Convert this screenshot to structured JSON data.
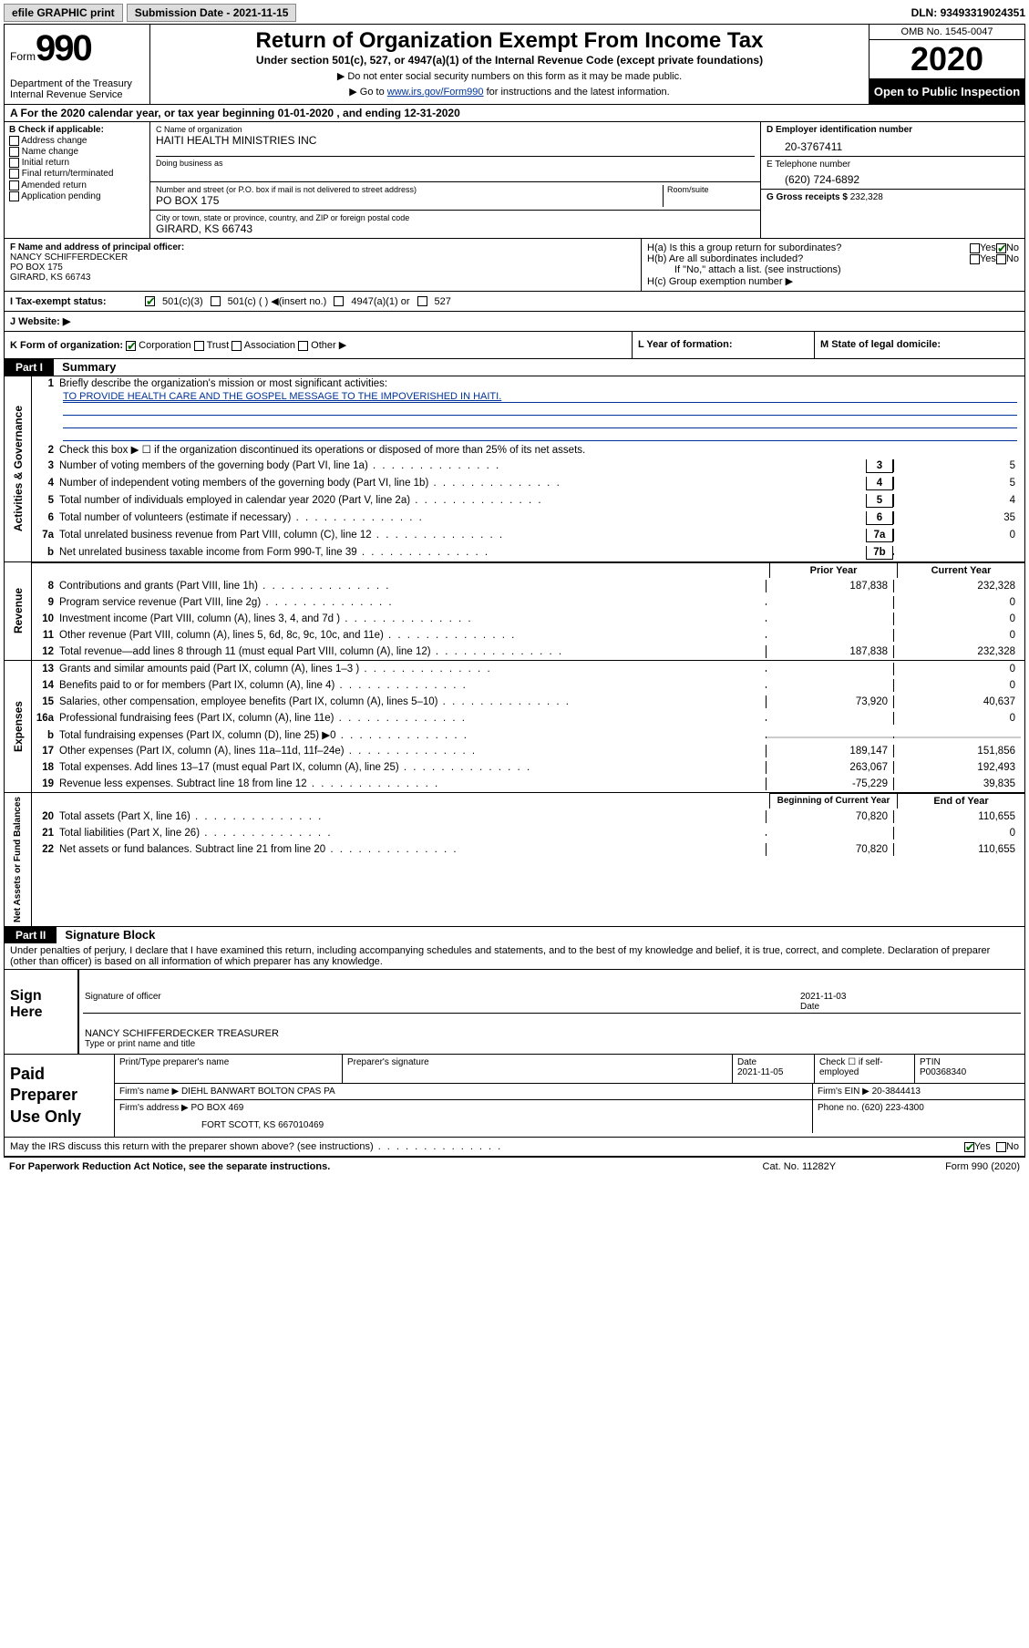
{
  "topbar": {
    "efile": "efile GRAPHIC print",
    "subdate_label": "Submission Date - ",
    "subdate": "2021-11-15",
    "dln_label": "DLN: ",
    "dln": "93493319024351"
  },
  "header": {
    "form_word": "Form",
    "form_num": "990",
    "dept": "Department of the Treasury\nInternal Revenue Service",
    "title": "Return of Organization Exempt From Income Tax",
    "subtitle": "Under section 501(c), 527, or 4947(a)(1) of the Internal Revenue Code (except private foundations)",
    "note1": "▶ Do not enter social security numbers on this form as it may be made public.",
    "note2_pre": "▶ Go to ",
    "note2_link": "www.irs.gov/Form990",
    "note2_post": " for instructions and the latest information.",
    "omb": "OMB No. 1545-0047",
    "year": "2020",
    "inspect": "Open to Public Inspection"
  },
  "row_a": "A   For the 2020 calendar year, or tax year beginning 01-01-2020    , and ending 12-31-2020",
  "col_b": {
    "hdr": "B Check if applicable:",
    "items": [
      "Address change",
      "Name change",
      "Initial return",
      "Final return/terminated",
      "Amended return",
      "Application pending"
    ]
  },
  "col_c": {
    "name_label": "C Name of organization",
    "name": "HAITI HEALTH MINISTRIES INC",
    "dba_label": "Doing business as",
    "addr_label": "Number and street (or P.O. box if mail is not delivered to street address)",
    "room_label": "Room/suite",
    "addr": "PO BOX 175",
    "city_label": "City or town, state or province, country, and ZIP or foreign postal code",
    "city": "GIRARD, KS  66743"
  },
  "col_d": {
    "ein_label": "D Employer identification number",
    "ein": "20-3767411",
    "phone_label": "E Telephone number",
    "phone": "(620) 724-6892",
    "gross_label": "G Gross receipts $ ",
    "gross": "232,328"
  },
  "f": {
    "label": "F  Name and address of principal officer:",
    "name": "NANCY SCHIFFERDECKER",
    "addr1": "PO BOX 175",
    "addr2": "GIRARD, KS  66743"
  },
  "h": {
    "a_label": "H(a)  Is this a group return for subordinates?",
    "a_yes": "Yes",
    "a_no": "No",
    "b_label": "H(b)  Are all subordinates included?",
    "b_yes": "Yes",
    "b_no": "No",
    "b_note": "If \"No,\" attach a list. (see instructions)",
    "c_label": "H(c)  Group exemption number ▶"
  },
  "i": {
    "label": "I    Tax-exempt status:",
    "o1": "501(c)(3)",
    "o2": "501(c) (   ) ◀(insert no.)",
    "o3": "4947(a)(1) or",
    "o4": "527"
  },
  "j": {
    "label": "J    Website: ▶"
  },
  "k": {
    "label": "K Form of organization:",
    "o1": "Corporation",
    "o2": "Trust",
    "o3": "Association",
    "o4": "Other ▶",
    "l_label": "L Year of formation:",
    "m_label": "M State of legal domicile:"
  },
  "part1": {
    "hdr": "Part I",
    "title": "Summary",
    "side1": "Activities & Governance",
    "side2": "Revenue",
    "side3": "Expenses",
    "side4": "Net Assets or Fund Balances",
    "l1": "Briefly describe the organization's mission or most significant activities:",
    "l1_val": "TO PROVIDE HEALTH CARE AND THE GOSPEL MESSAGE TO THE IMPOVERISHED IN HAITI.",
    "l2": "Check this box ▶ ☐  if the organization discontinued its operations or disposed of more than 25% of its net assets.",
    "lines_gov": [
      {
        "n": "3",
        "t": "Number of voting members of the governing body (Part VI, line 1a)",
        "b": "3",
        "v": "5"
      },
      {
        "n": "4",
        "t": "Number of independent voting members of the governing body (Part VI, line 1b)",
        "b": "4",
        "v": "5"
      },
      {
        "n": "5",
        "t": "Total number of individuals employed in calendar year 2020 (Part V, line 2a)",
        "b": "5",
        "v": "4"
      },
      {
        "n": "6",
        "t": "Total number of volunteers (estimate if necessary)",
        "b": "6",
        "v": "35"
      },
      {
        "n": "7a",
        "t": "Total unrelated business revenue from Part VIII, column (C), line 12",
        "b": "7a",
        "v": "0"
      },
      {
        "n": "b",
        "t": "Net unrelated business taxable income from Form 990-T, line 39",
        "b": "7b",
        "v": ""
      }
    ],
    "col_hdr_prior": "Prior Year",
    "col_hdr_curr": "Current Year",
    "lines_rev": [
      {
        "n": "8",
        "t": "Contributions and grants (Part VIII, line 1h)",
        "p": "187,838",
        "c": "232,328"
      },
      {
        "n": "9",
        "t": "Program service revenue (Part VIII, line 2g)",
        "p": "",
        "c": "0"
      },
      {
        "n": "10",
        "t": "Investment income (Part VIII, column (A), lines 3, 4, and 7d )",
        "p": "",
        "c": "0"
      },
      {
        "n": "11",
        "t": "Other revenue (Part VIII, column (A), lines 5, 6d, 8c, 9c, 10c, and 11e)",
        "p": "",
        "c": "0"
      },
      {
        "n": "12",
        "t": "Total revenue—add lines 8 through 11 (must equal Part VIII, column (A), line 12)",
        "p": "187,838",
        "c": "232,328"
      }
    ],
    "lines_exp": [
      {
        "n": "13",
        "t": "Grants and similar amounts paid (Part IX, column (A), lines 1–3 )",
        "p": "",
        "c": "0"
      },
      {
        "n": "14",
        "t": "Benefits paid to or for members (Part IX, column (A), line 4)",
        "p": "",
        "c": "0"
      },
      {
        "n": "15",
        "t": "Salaries, other compensation, employee benefits (Part IX, column (A), lines 5–10)",
        "p": "73,920",
        "c": "40,637"
      },
      {
        "n": "16a",
        "t": "Professional fundraising fees (Part IX, column (A), line 11e)",
        "p": "",
        "c": "0"
      },
      {
        "n": "b",
        "t": "Total fundraising expenses (Part IX, column (D), line 25) ▶0",
        "p": "GREY",
        "c": "GREY"
      },
      {
        "n": "17",
        "t": "Other expenses (Part IX, column (A), lines 11a–11d, 11f–24e)",
        "p": "189,147",
        "c": "151,856"
      },
      {
        "n": "18",
        "t": "Total expenses. Add lines 13–17 (must equal Part IX, column (A), line 25)",
        "p": "263,067",
        "c": "192,493"
      },
      {
        "n": "19",
        "t": "Revenue less expenses. Subtract line 18 from line 12",
        "p": "-75,229",
        "c": "39,835"
      }
    ],
    "col_hdr_beg": "Beginning of Current Year",
    "col_hdr_end": "End of Year",
    "lines_net": [
      {
        "n": "20",
        "t": "Total assets (Part X, line 16)",
        "p": "70,820",
        "c": "110,655"
      },
      {
        "n": "21",
        "t": "Total liabilities (Part X, line 26)",
        "p": "",
        "c": "0"
      },
      {
        "n": "22",
        "t": "Net assets or fund balances. Subtract line 21 from line 20",
        "p": "70,820",
        "c": "110,655"
      }
    ]
  },
  "part2": {
    "hdr": "Part II",
    "title": "Signature Block",
    "decl": "Under penalties of perjury, I declare that I have examined this return, including accompanying schedules and statements, and to the best of my knowledge and belief, it is true, correct, and complete. Declaration of preparer (other than officer) is based on all information of which preparer has any knowledge."
  },
  "sign": {
    "label": "Sign Here",
    "sig_label": "Signature of officer",
    "date": "2021-11-03",
    "date_label": "Date",
    "name": "NANCY SCHIFFERDECKER  TREASURER",
    "name_label": "Type or print name and title"
  },
  "prep": {
    "label": "Paid Preparer Use Only",
    "h1": "Print/Type preparer's name",
    "h2": "Preparer's signature",
    "h3": "Date",
    "h3v": "2021-11-05",
    "h4": "Check ☐ if self-employed",
    "h5": "PTIN",
    "h5v": "P00368340",
    "firm_label": "Firm's name    ▶",
    "firm": "DIEHL BANWART BOLTON CPAS PA",
    "ein_label": "Firm's EIN ▶",
    "ein": "20-3844413",
    "addr_label": "Firm's address ▶",
    "addr1": "PO BOX 469",
    "addr2": "FORT SCOTT, KS  667010469",
    "phone_label": "Phone no.",
    "phone": "(620) 223-4300"
  },
  "discuss": {
    "q": "May the IRS discuss this return with the preparer shown above? (see instructions)",
    "yes": "Yes",
    "no": "No"
  },
  "footer": {
    "l": "For Paperwork Reduction Act Notice, see the separate instructions.",
    "m": "Cat. No. 11282Y",
    "r": "Form 990 (2020)"
  }
}
